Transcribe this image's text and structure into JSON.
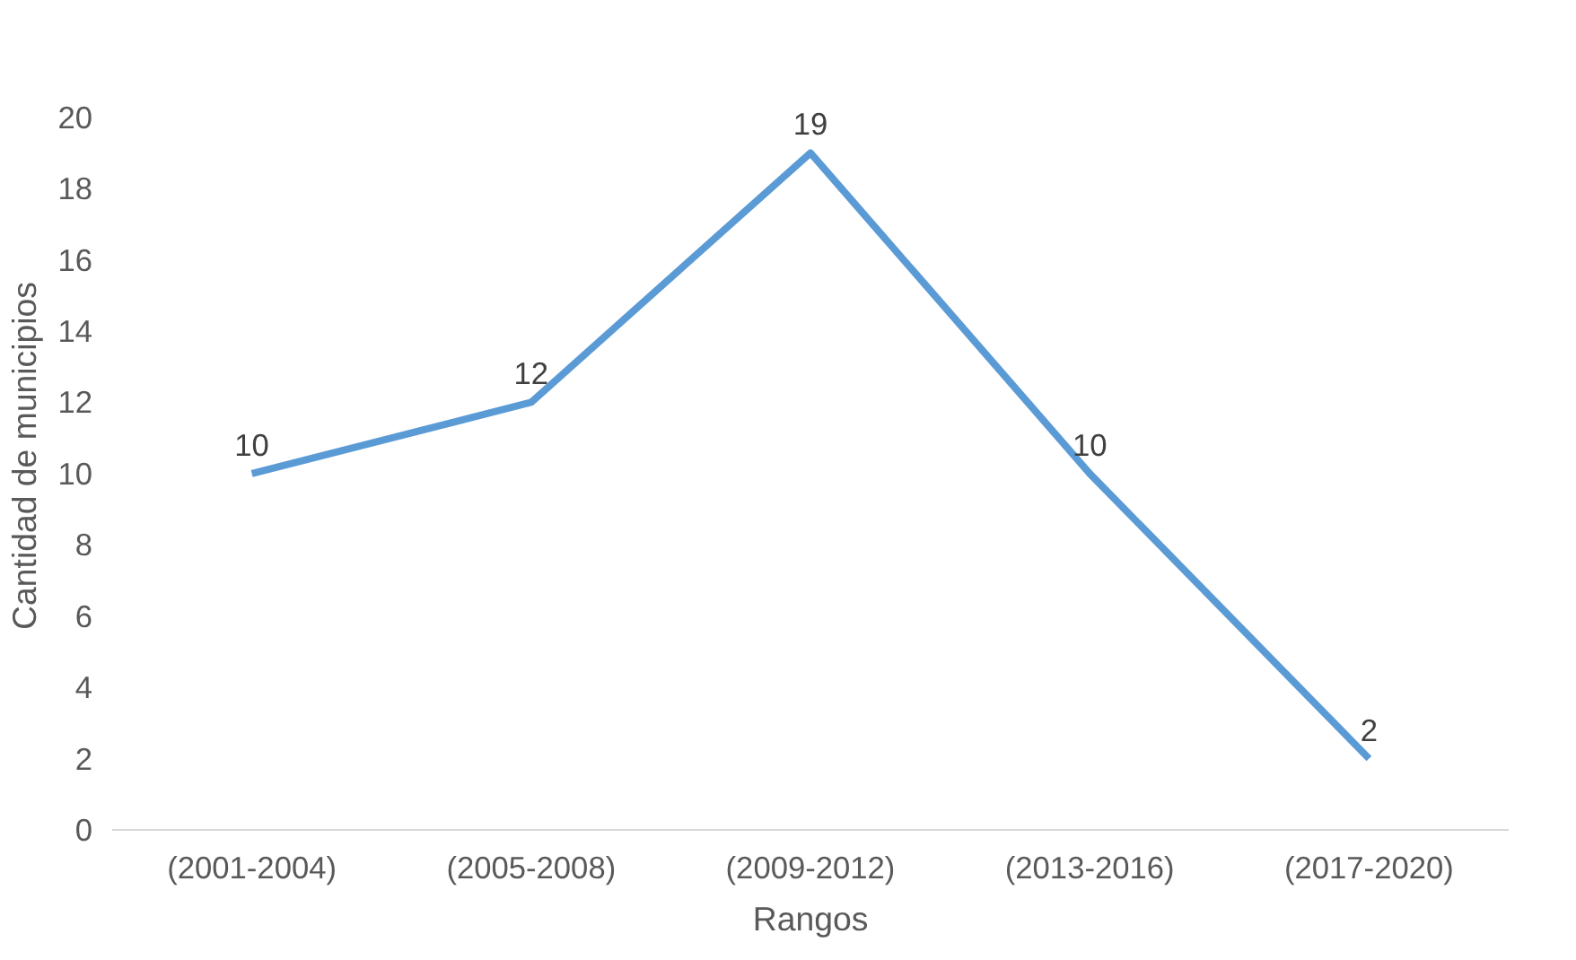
{
  "chart_data": {
    "type": "line",
    "xlabel": "Rangos",
    "ylabel": "Cantidad de municipios",
    "categories": [
      "(2001-2004)",
      "(2005-2008)",
      "(2009-2012)",
      "(2013-2016)",
      "(2017-2020)"
    ],
    "series": [
      {
        "color": "#5b9bd5",
        "values": [
          10,
          12,
          19,
          10,
          2
        ]
      }
    ],
    "ylim": [
      0,
      20
    ],
    "yticks": [
      0,
      2,
      4,
      6,
      8,
      10,
      12,
      14,
      16,
      18,
      20
    ],
    "grid": false,
    "data_labels": true,
    "marker": "none",
    "line_style": "solid"
  }
}
